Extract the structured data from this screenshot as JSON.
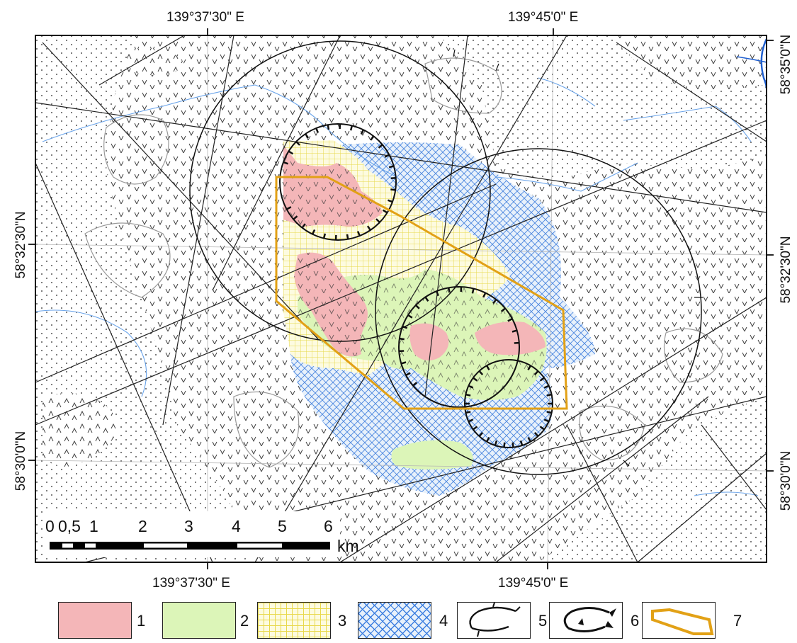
{
  "coordinates": {
    "top": [
      "139°37'30\" E",
      "139°45'0\" E"
    ],
    "bottom": [
      "139°37'30\" E",
      "139°45'0\" E"
    ],
    "left": [
      "58°32'30\"N",
      "58°30'0\"N"
    ],
    "right": [
      "58°35'0\"N",
      "58°32'30\"N",
      "58°30'0\"N"
    ]
  },
  "scale_bar": {
    "ticks": [
      "0",
      "0,5",
      "1",
      "2",
      "3",
      "4",
      "5",
      "6"
    ],
    "unit": "km"
  },
  "legend": [
    {
      "number": "1",
      "color": "#f4b6b8",
      "pattern": "pink-fill"
    },
    {
      "number": "2",
      "color": "#dcf5b8",
      "pattern": "green-fill"
    },
    {
      "number": "3",
      "color": "#f2e86a",
      "pattern": "yellow-grid"
    },
    {
      "number": "4",
      "color": "#3d7fe0",
      "pattern": "blue-crosshatch"
    },
    {
      "number": "5",
      "color": "#111111",
      "pattern": "fault-ring"
    },
    {
      "number": "6",
      "color": "#111111",
      "pattern": "thrust-ring"
    },
    {
      "number": "7",
      "color": "#e2a116",
      "pattern": "outline-polygon"
    }
  ],
  "colors": {
    "river": "#2b6fd6",
    "contour": "#9a9a9a",
    "outline": "#e2a116"
  }
}
